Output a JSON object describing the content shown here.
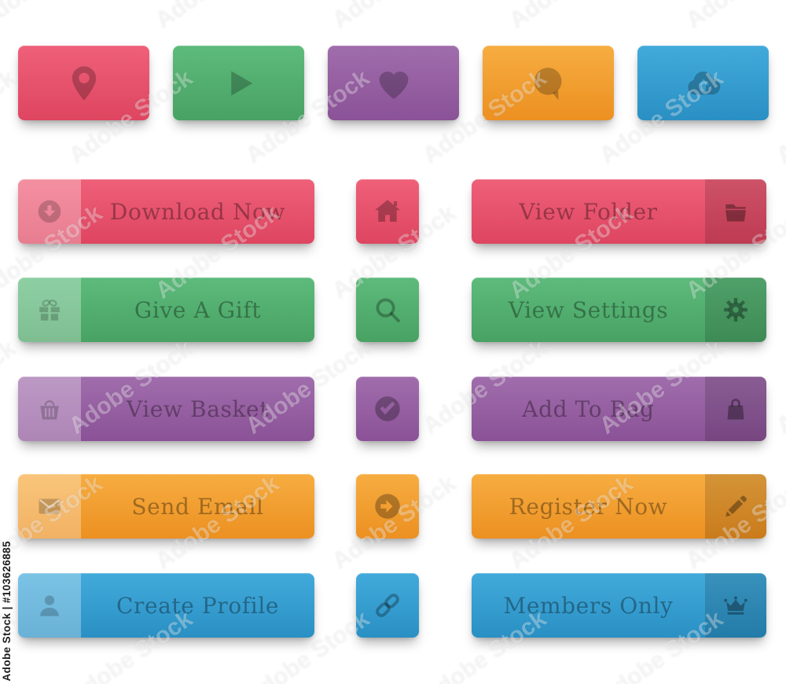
{
  "watermark": {
    "pattern_text": "Adobe Stock",
    "id_text": "Adobe Stock | #103626885"
  },
  "accent_colors": {
    "red": "#e6506b",
    "green": "#52b171",
    "purple": "#9560a1",
    "orange": "#f2a032",
    "blue": "#36a0d2"
  },
  "icon_tiles": [
    {
      "icon": "map-pin-icon",
      "color": "red"
    },
    {
      "icon": "play-icon",
      "color": "green"
    },
    {
      "icon": "heart-icon",
      "color": "purple"
    },
    {
      "icon": "chat-bubble-icon",
      "color": "orange"
    },
    {
      "icon": "cloud-upload-icon",
      "color": "blue"
    }
  ],
  "rows": [
    {
      "color": "red",
      "left_button": {
        "label": "Download Now",
        "icon": "download-icon"
      },
      "square_button": {
        "icon": "home-icon"
      },
      "right_button": {
        "label": "View Folder",
        "icon": "folder-icon"
      }
    },
    {
      "color": "green",
      "left_button": {
        "label": "Give A Gift",
        "icon": "gift-icon"
      },
      "square_button": {
        "icon": "search-icon"
      },
      "right_button": {
        "label": "View Settings",
        "icon": "gear-icon"
      }
    },
    {
      "color": "purple",
      "left_button": {
        "label": "View Basket",
        "icon": "basket-icon"
      },
      "square_button": {
        "icon": "check-circle-icon"
      },
      "right_button": {
        "label": "Add To Bag",
        "icon": "shopping-bag-icon"
      }
    },
    {
      "color": "orange",
      "left_button": {
        "label": "Send Email",
        "icon": "envelope-icon"
      },
      "square_button": {
        "icon": "arrow-right-circle-icon"
      },
      "right_button": {
        "label": "Register Now",
        "icon": "pencil-icon"
      }
    },
    {
      "color": "blue",
      "left_button": {
        "label": "Create Profile",
        "icon": "user-icon"
      },
      "square_button": {
        "icon": "link-icon"
      },
      "right_button": {
        "label": "Members Only",
        "icon": "crown-icon"
      }
    }
  ]
}
